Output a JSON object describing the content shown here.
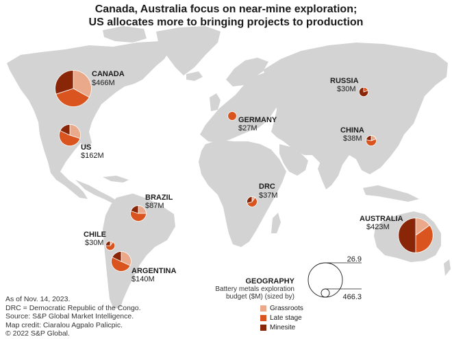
{
  "title": {
    "line1": "Canada, Australia focus on near-mine exploration;",
    "line2": "US allocates more to bringing projects to production"
  },
  "colors": {
    "grassroots": "#eaa98a",
    "late_stage": "#d9541f",
    "minesite": "#8a2608",
    "land": "#d3d3d3"
  },
  "countries": [
    {
      "name": "CANADA",
      "value": "$466M",
      "budget": 466.3,
      "split": [
        0.33,
        0.37,
        0.3
      ]
    },
    {
      "name": "US",
      "value": "$162M",
      "budget": 162,
      "split": [
        0.3,
        0.52,
        0.18
      ]
    },
    {
      "name": "GERMANY",
      "value": "$27M",
      "budget": 27,
      "split": [
        0.0,
        1.0,
        0.0
      ]
    },
    {
      "name": "RUSSIA",
      "value": "$30M",
      "budget": 30,
      "split": [
        0.0,
        0.2,
        0.8
      ]
    },
    {
      "name": "CHINA",
      "value": "$38M",
      "budget": 38,
      "split": [
        0.2,
        0.58,
        0.22
      ]
    },
    {
      "name": "BRAZIL",
      "value": "$87M",
      "budget": 87,
      "split": [
        0.25,
        0.55,
        0.2
      ]
    },
    {
      "name": "DRC",
      "value": "$37M",
      "budget": 37,
      "split": [
        0.1,
        0.6,
        0.3
      ]
    },
    {
      "name": "CHILE",
      "value": "$30M",
      "budget": 30,
      "split": [
        0.1,
        0.65,
        0.25
      ]
    },
    {
      "name": "ARGENTINA",
      "value": "$140M",
      "budget": 140,
      "split": [
        0.32,
        0.5,
        0.18
      ]
    },
    {
      "name": "AUSTRALIA",
      "value": "$423M",
      "budget": 423,
      "split": [
        0.15,
        0.35,
        0.5
      ]
    }
  ],
  "legend": {
    "title": "GEOGRAPHY",
    "subtitle_line1": "Battery metals exploration",
    "subtitle_line2": "budget ($M) (sized by)",
    "size_small": "26.9",
    "size_large": "466.3",
    "items": [
      {
        "label": "Grassroots",
        "color": "#eaa98a"
      },
      {
        "label": "Late stage",
        "color": "#d9541f"
      },
      {
        "label": "Minesite",
        "color": "#8a2608"
      }
    ]
  },
  "notes": [
    "As of Nov. 14, 2023.",
    "DRC = Democratic Republic of the Congo.",
    "Source: S&P Global Market Intelligence.",
    "Map credit: Ciaralou Agpalo Palicpic.",
    "© 2022 S&P Global."
  ]
}
